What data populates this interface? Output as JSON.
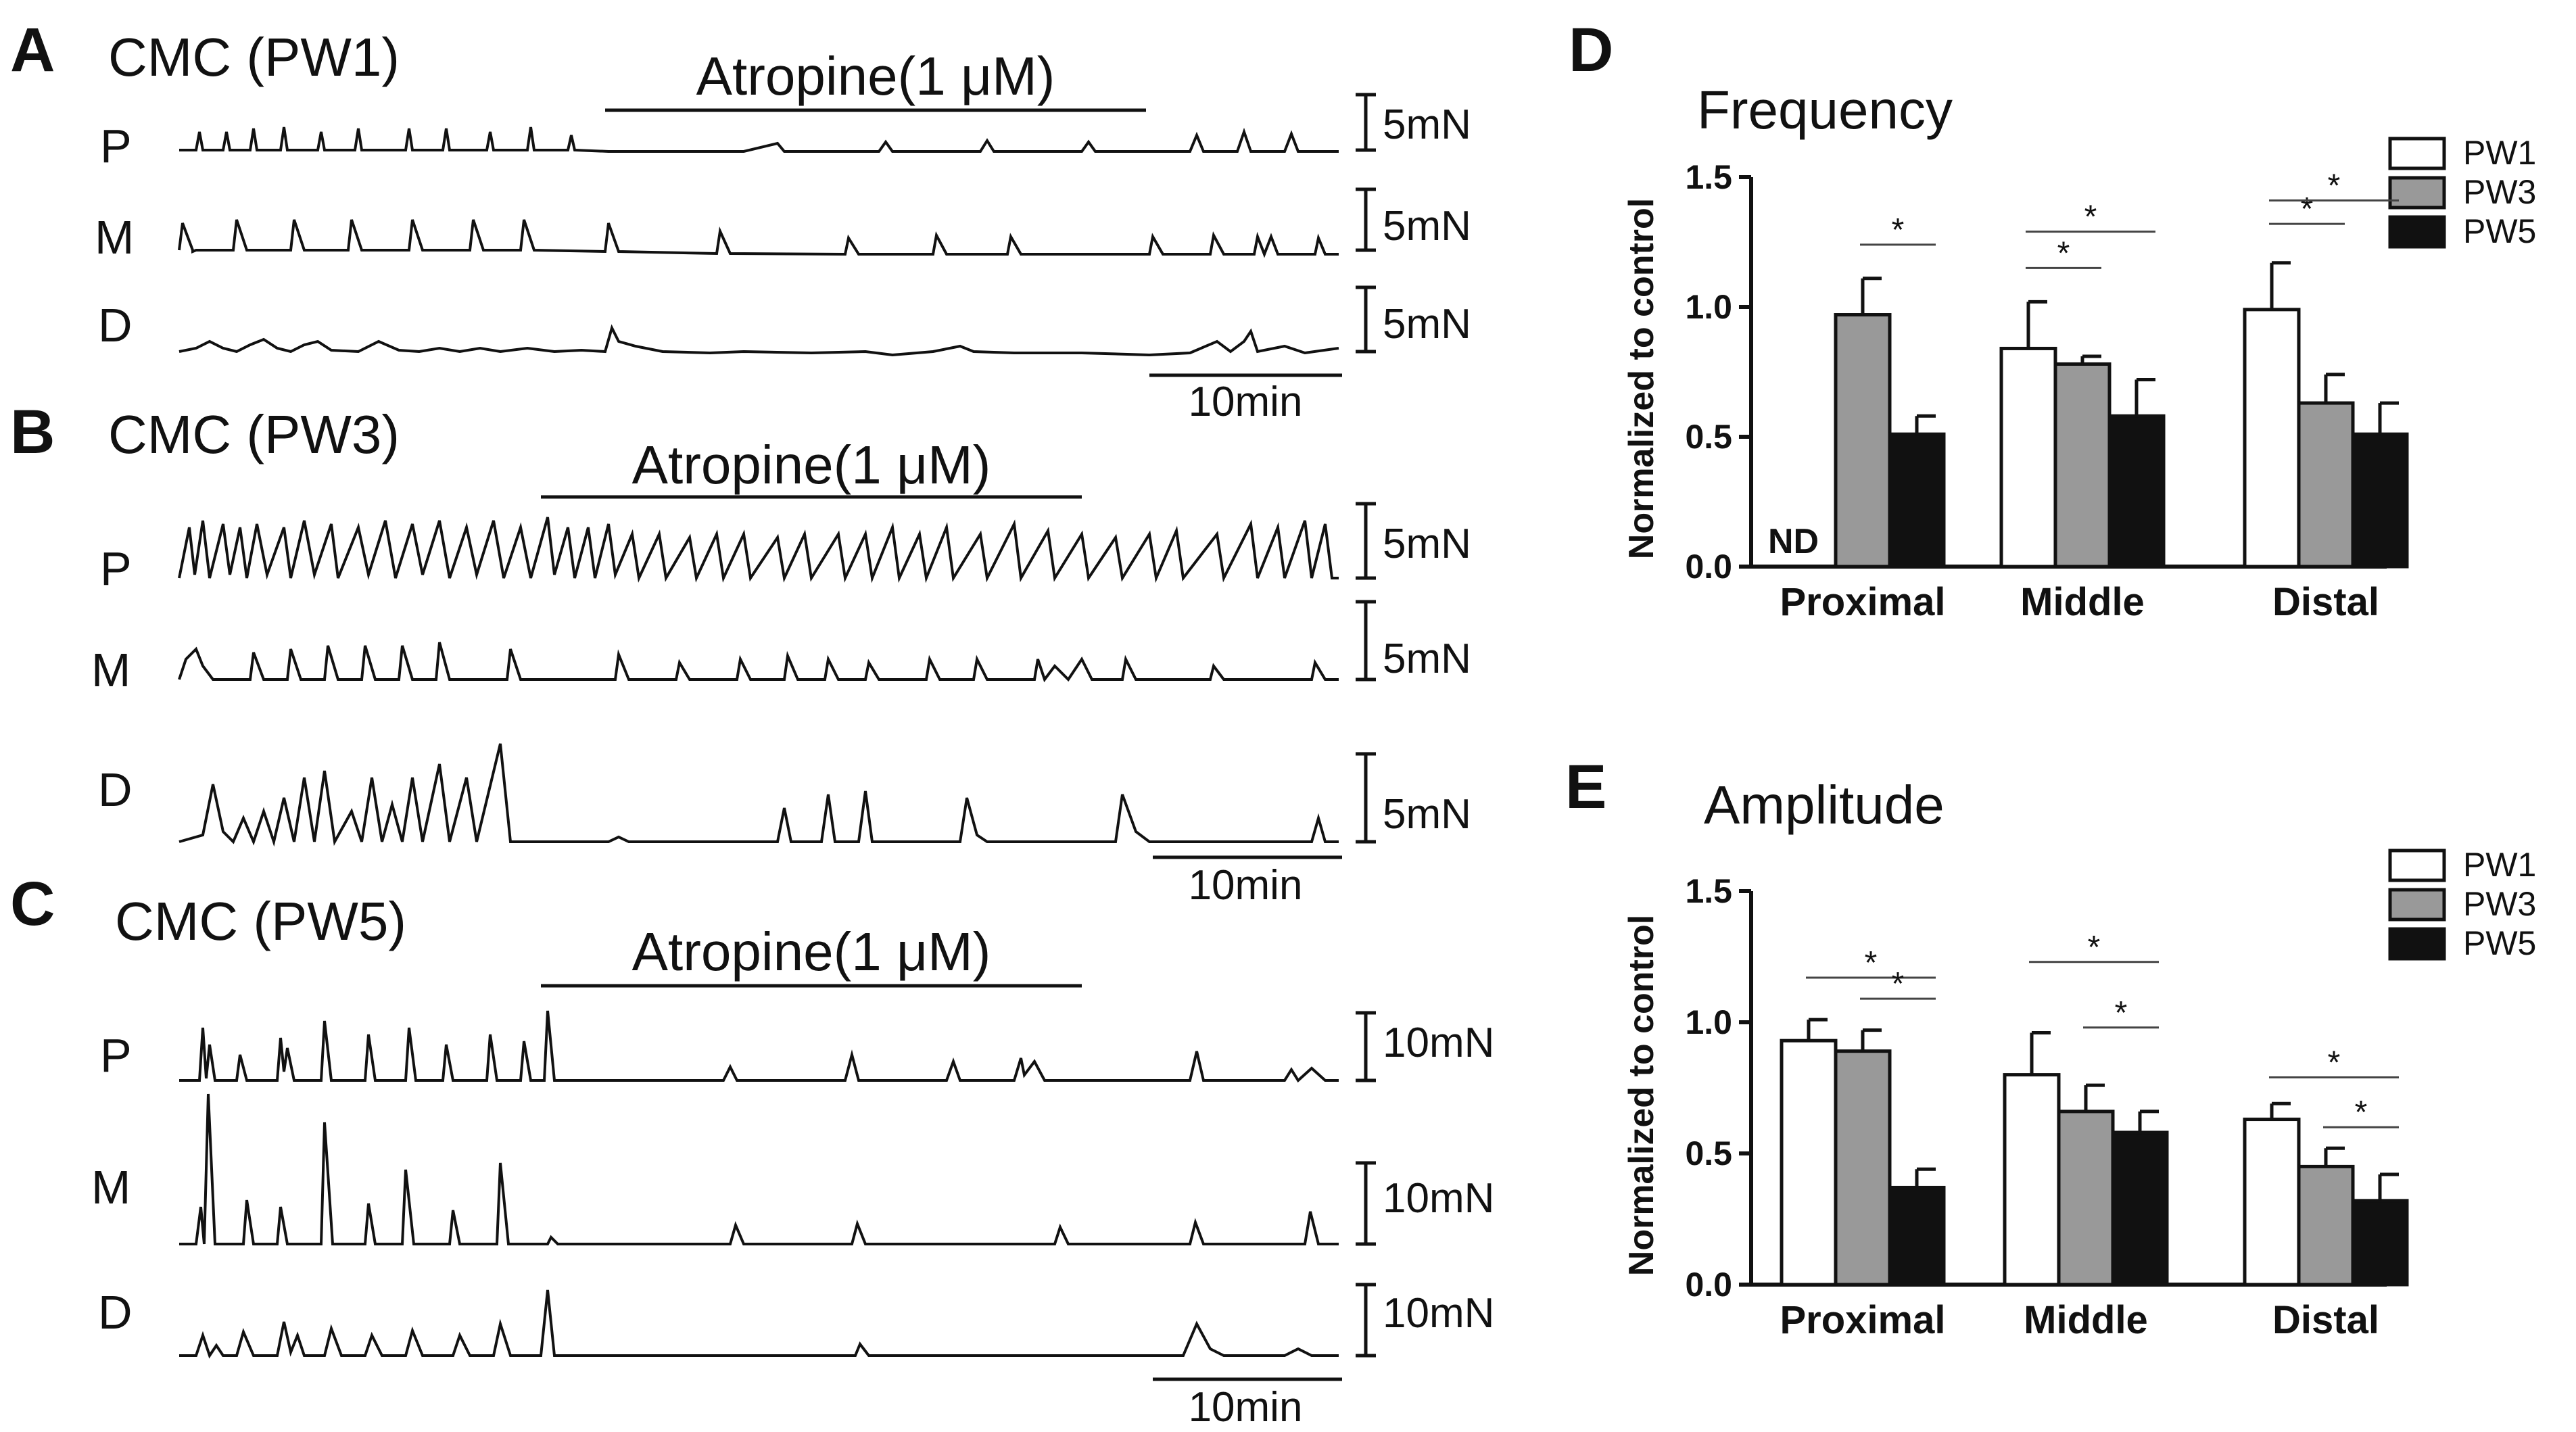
{
  "traces": [
    {
      "panel": "A",
      "title": "CMC (PW1)",
      "drug": "Atropine(1 μM)",
      "time_scale": "10min",
      "rows": [
        {
          "label": "P",
          "scale": "5mN"
        },
        {
          "label": "M",
          "scale": "5mN"
        },
        {
          "label": "D",
          "scale": "5mN"
        }
      ]
    },
    {
      "panel": "B",
      "title": "CMC (PW3)",
      "drug": "Atropine(1 μM)",
      "time_scale": "10min",
      "rows": [
        {
          "label": "P",
          "scale": "5mN"
        },
        {
          "label": "M",
          "scale": "5mN"
        },
        {
          "label": "D",
          "scale": "5mN"
        }
      ]
    },
    {
      "panel": "C",
      "title": "CMC (PW5)",
      "drug": "Atropine(1 μM)",
      "time_scale": "10min",
      "rows": [
        {
          "label": "P",
          "scale": "10mN"
        },
        {
          "label": "M",
          "scale": "10mN"
        },
        {
          "label": "D",
          "scale": "10mN"
        }
      ]
    }
  ],
  "colors": {
    "PW1": "#ffffff",
    "PW3": "#999999",
    "PW5": "#111111",
    "ink": "#111111"
  },
  "chart_data": [
    {
      "panel": "D",
      "type": "bar",
      "title": "Frequency",
      "ylabel": "Normalized to control",
      "ylim": [
        0,
        1.5
      ],
      "yticks": [
        "0.0",
        "0.5",
        "1.0",
        "1.5"
      ],
      "categories": [
        "Proximal",
        "Middle",
        "Distal"
      ],
      "legend": [
        "PW1",
        "PW3",
        "PW5"
      ],
      "legend_position": "top-right",
      "series": [
        {
          "name": "PW1",
          "values": [
            null,
            0.84,
            0.99
          ],
          "errors": [
            null,
            0.18,
            0.18
          ]
        },
        {
          "name": "PW3",
          "values": [
            0.97,
            0.78,
            0.63
          ],
          "errors": [
            0.14,
            0.03,
            0.11
          ]
        },
        {
          "name": "PW5",
          "values": [
            0.51,
            0.58,
            0.51
          ],
          "errors": [
            0.07,
            0.14,
            0.12
          ]
        }
      ],
      "annotations": [
        "ND"
      ],
      "significance": [
        {
          "category": "Proximal",
          "pair": [
            "PW3",
            "PW5"
          ],
          "mark": "*"
        },
        {
          "category": "Middle",
          "pair": [
            "PW1",
            "PW3"
          ],
          "mark": "*"
        },
        {
          "category": "Middle",
          "pair": [
            "PW1",
            "PW5"
          ],
          "mark": "*"
        },
        {
          "category": "Distal",
          "pair": [
            "PW1",
            "PW3"
          ],
          "mark": "*"
        },
        {
          "category": "Distal",
          "pair": [
            "PW1",
            "PW5"
          ],
          "mark": "*"
        }
      ]
    },
    {
      "panel": "E",
      "type": "bar",
      "title": "Amplitude",
      "ylabel": "Normalized to control",
      "ylim": [
        0,
        1.5
      ],
      "yticks": [
        "0.0",
        "0.5",
        "1.0",
        "1.5"
      ],
      "categories": [
        "Proximal",
        "Middle",
        "Distal"
      ],
      "legend": [
        "PW1",
        "PW3",
        "PW5"
      ],
      "legend_position": "top-right",
      "series": [
        {
          "name": "PW1",
          "values": [
            0.93,
            0.8,
            0.63
          ],
          "errors": [
            0.08,
            0.16,
            0.06
          ]
        },
        {
          "name": "PW3",
          "values": [
            0.89,
            0.66,
            0.45
          ],
          "errors": [
            0.08,
            0.1,
            0.07
          ]
        },
        {
          "name": "PW5",
          "values": [
            0.37,
            0.58,
            0.32
          ],
          "errors": [
            0.07,
            0.08,
            0.1
          ]
        }
      ],
      "annotations": [],
      "significance": [
        {
          "category": "Proximal",
          "pair": [
            "PW1",
            "PW5"
          ],
          "mark": "*"
        },
        {
          "category": "Proximal",
          "pair": [
            "PW3",
            "PW5"
          ],
          "mark": "*"
        },
        {
          "category": "Middle",
          "pair": [
            "PW1",
            "PW5"
          ],
          "mark": "*"
        },
        {
          "category": "Middle",
          "pair": [
            "PW3",
            "PW5"
          ],
          "mark": "*"
        },
        {
          "category": "Distal",
          "pair": [
            "PW1",
            "PW5"
          ],
          "mark": "*"
        },
        {
          "category": "Distal",
          "pair": [
            "PW3",
            "PW5"
          ],
          "mark": "*"
        }
      ]
    }
  ]
}
